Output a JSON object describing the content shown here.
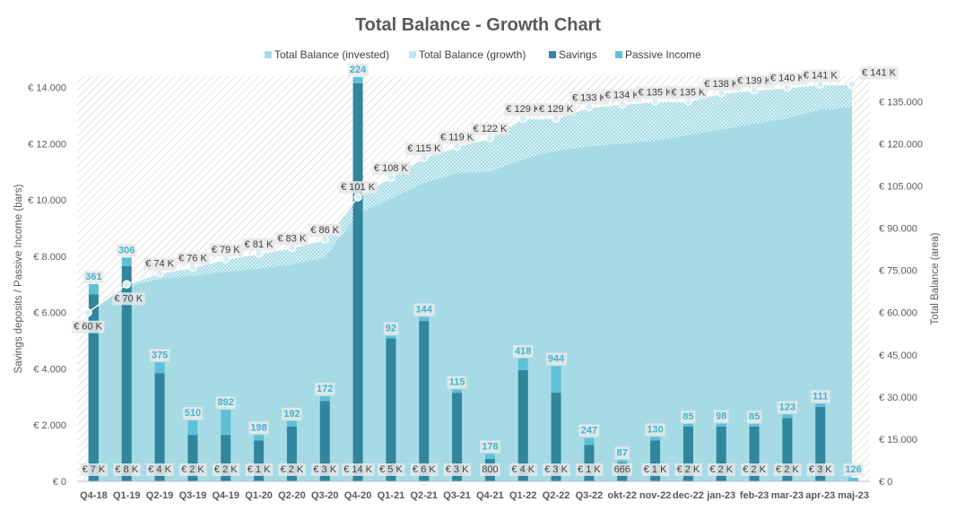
{
  "chart_data": {
    "type": "bar",
    "title": "Total Balance - Growth Chart",
    "ylabel": "Savings deposits / Passive Income (bars)",
    "ylabel_right": "Total Balance (area)",
    "ylim": [
      0,
      14400
    ],
    "ylim_right": [
      0,
      144000
    ],
    "yticks": [
      "€ 0",
      "€ 2.000",
      "€ 4.000",
      "€ 6.000",
      "€ 8.000",
      "€ 10.000",
      "€ 12.000",
      "€ 14.000"
    ],
    "yticks_right": [
      "€ 0",
      "€ 15.000",
      "€ 30.000",
      "€ 45.000",
      "€ 60.000",
      "€ 75.000",
      "€ 90.000",
      "€ 105.000",
      "€ 120.000",
      "€ 135.000"
    ],
    "grid": false,
    "legend_position": "top",
    "legend": [
      {
        "name": "Total Balance (invested)",
        "color": "#a6dbe6"
      },
      {
        "name": "Total Balance (growth)",
        "color": "#cfeef4",
        "pattern": "dots"
      },
      {
        "name": "Savings",
        "color": "#31859c"
      },
      {
        "name": "Passive Income",
        "color": "#5ec0d6"
      }
    ],
    "categories": [
      "Q4-18",
      "Q1-19",
      "Q2-19",
      "Q3-19",
      "Q4-19",
      "Q1-20",
      "Q2-20",
      "Q3-20",
      "Q4-20",
      "Q1-21",
      "Q2-21",
      "Q3-21",
      "Q4-21",
      "Q1-22",
      "Q2-22",
      "Q3-22",
      "okt-22",
      "nov-22",
      "dec-22",
      "jan-23",
      "feb-23",
      "mar-23",
      "apr-23",
      "maj-23"
    ],
    "savings": [
      6650,
      7650,
      3850,
      1650,
      1650,
      1450,
      1950,
      2850,
      14150,
      5080,
      5700,
      3150,
      800,
      3950,
      3150,
      1300,
      666,
      1450,
      1950,
      1950,
      1950,
      2250,
      2650,
      0
    ],
    "passive_income": [
      361,
      306,
      375,
      510,
      892,
      198,
      192,
      172,
      224,
      92,
      144,
      115,
      178,
      418,
      944,
      247,
      87,
      130,
      85,
      98,
      85,
      123,
      111,
      126
    ],
    "savings_labels": [
      "€ 7 K",
      "€ 8 K",
      "€ 4 K",
      "€ 2 K",
      "€ 2 K",
      "€ 1 K",
      "€ 2 K",
      "€ 3 K",
      "€ 14 K",
      "€ 5 K",
      "€ 6 K",
      "€ 3 K",
      "800",
      "€ 4 K",
      "€ 3 K",
      "€ 1 K",
      "666",
      "€ 1 K",
      "€ 2 K",
      "€ 2 K",
      "€ 2 K",
      "€ 2 K",
      "€ 3 K",
      ""
    ],
    "passive_income_labels": [
      "361",
      "306",
      "375",
      "510",
      "892",
      "198",
      "192",
      "172",
      "224",
      "92",
      "144",
      "115",
      "178",
      "418",
      "944",
      "247",
      "87",
      "130",
      "85",
      "98",
      "85",
      "123",
      "111",
      "126"
    ],
    "balance_invested": [
      60000,
      69000,
      72000,
      73000,
      74500,
      75500,
      77000,
      79500,
      95000,
      100500,
      106000,
      109500,
      110000,
      114500,
      117500,
      119000,
      120000,
      121000,
      123000,
      125000,
      127000,
      129000,
      132000,
      133000
    ],
    "balance_total": [
      60000,
      70000,
      74000,
      76000,
      79000,
      81000,
      83000,
      86000,
      101000,
      108000,
      115000,
      119000,
      122000,
      129000,
      129000,
      133000,
      134000,
      135000,
      135000,
      138000,
      139000,
      140000,
      141000,
      141000
    ],
    "balance_labels": [
      "€ 60 K",
      "€ 70 K",
      "€ 74 K",
      "€ 76 K",
      "€ 79 K",
      "€ 81 K",
      "€ 83 K",
      "€ 86 K",
      "€ 101 K",
      "€ 108 K",
      "€ 115 K",
      "€ 119 K",
      "€ 122 K",
      "€ 129 K",
      "€ 129 K",
      "€ 133 K",
      "€ 134 K",
      "€ 135 K",
      "€ 135 K",
      "€ 138 K",
      "€ 139 K",
      "€ 140 K",
      "€ 141 K",
      "€ 141 K"
    ]
  }
}
